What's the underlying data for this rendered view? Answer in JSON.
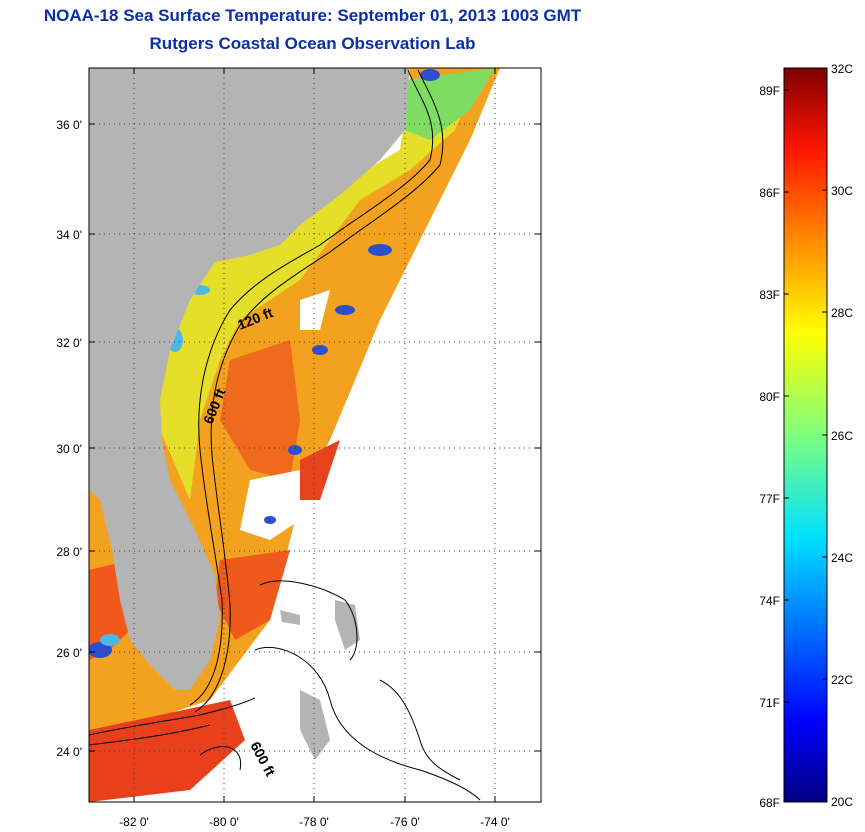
{
  "header": {
    "title": "NOAA-18 Sea Surface Temperature:  September 01, 2013 1003 GMT",
    "subtitle": "Rutgers Coastal Ocean Observation Lab"
  },
  "map": {
    "lat_ticks": [
      "36 0'",
      "34 0'",
      "32 0'",
      "30 0'",
      "28 0'",
      "26 0'",
      "24 0'"
    ],
    "lon_ticks": [
      "-82 0'",
      "-80 0'",
      "-78 0'",
      "-76 0'",
      "-74 0'"
    ],
    "lat_range": [
      23,
      37.1
    ],
    "lon_range": [
      -83,
      -73.2
    ],
    "depth_labels": [
      "120 ft",
      "600 ft",
      "600 ft"
    ],
    "land_color": "#b4b4b4"
  },
  "colorbar": {
    "f_labels": [
      "89F",
      "86F",
      "83F",
      "80F",
      "77F",
      "74F",
      "71F",
      "68F"
    ],
    "c_labels": [
      "32C",
      "30C",
      "28C",
      "26C",
      "24C",
      "22C",
      "20C"
    ],
    "range_c": [
      20,
      32
    ],
    "colormap": "jet"
  }
}
